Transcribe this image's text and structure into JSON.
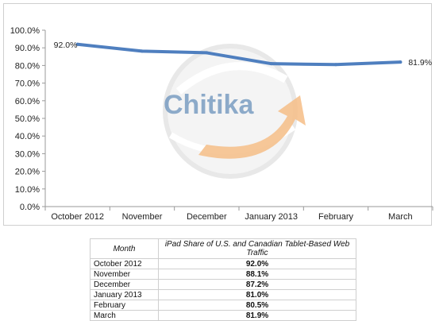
{
  "chart_data": {
    "type": "line",
    "title": "",
    "xlabel": "",
    "ylabel": "",
    "categories": [
      "October 2012",
      "November",
      "December",
      "January 2013",
      "February",
      "March"
    ],
    "series": [
      {
        "values": [
          92.0,
          88.1,
          87.2,
          81.0,
          80.5,
          81.9
        ],
        "color": "#4f7fbf"
      }
    ],
    "ylim": [
      0,
      100
    ],
    "yticks": [
      "0.0%",
      "10.0%",
      "20.0%",
      "30.0%",
      "40.0%",
      "50.0%",
      "60.0%",
      "70.0%",
      "80.0%",
      "90.0%",
      "100.0%"
    ],
    "data_labels": [
      {
        "index": 0,
        "text": "92.0%"
      },
      {
        "index": 5,
        "text": "81.9%"
      }
    ],
    "grid": false,
    "legend": "none"
  },
  "watermark": {
    "text": "Chitika",
    "color": "#5a86b5",
    "arrow_color": "#f5b679"
  },
  "table": {
    "headers": [
      "Month",
      "iPad Share of U.S. and Canadian Tablet-Based Web Traffic"
    ],
    "rows": [
      [
        "October 2012",
        "92.0%"
      ],
      [
        "November",
        "88.1%"
      ],
      [
        "December",
        "87.2%"
      ],
      [
        "January 2013",
        "81.0%"
      ],
      [
        "February",
        "80.5%"
      ],
      [
        "March",
        "81.9%"
      ]
    ]
  }
}
